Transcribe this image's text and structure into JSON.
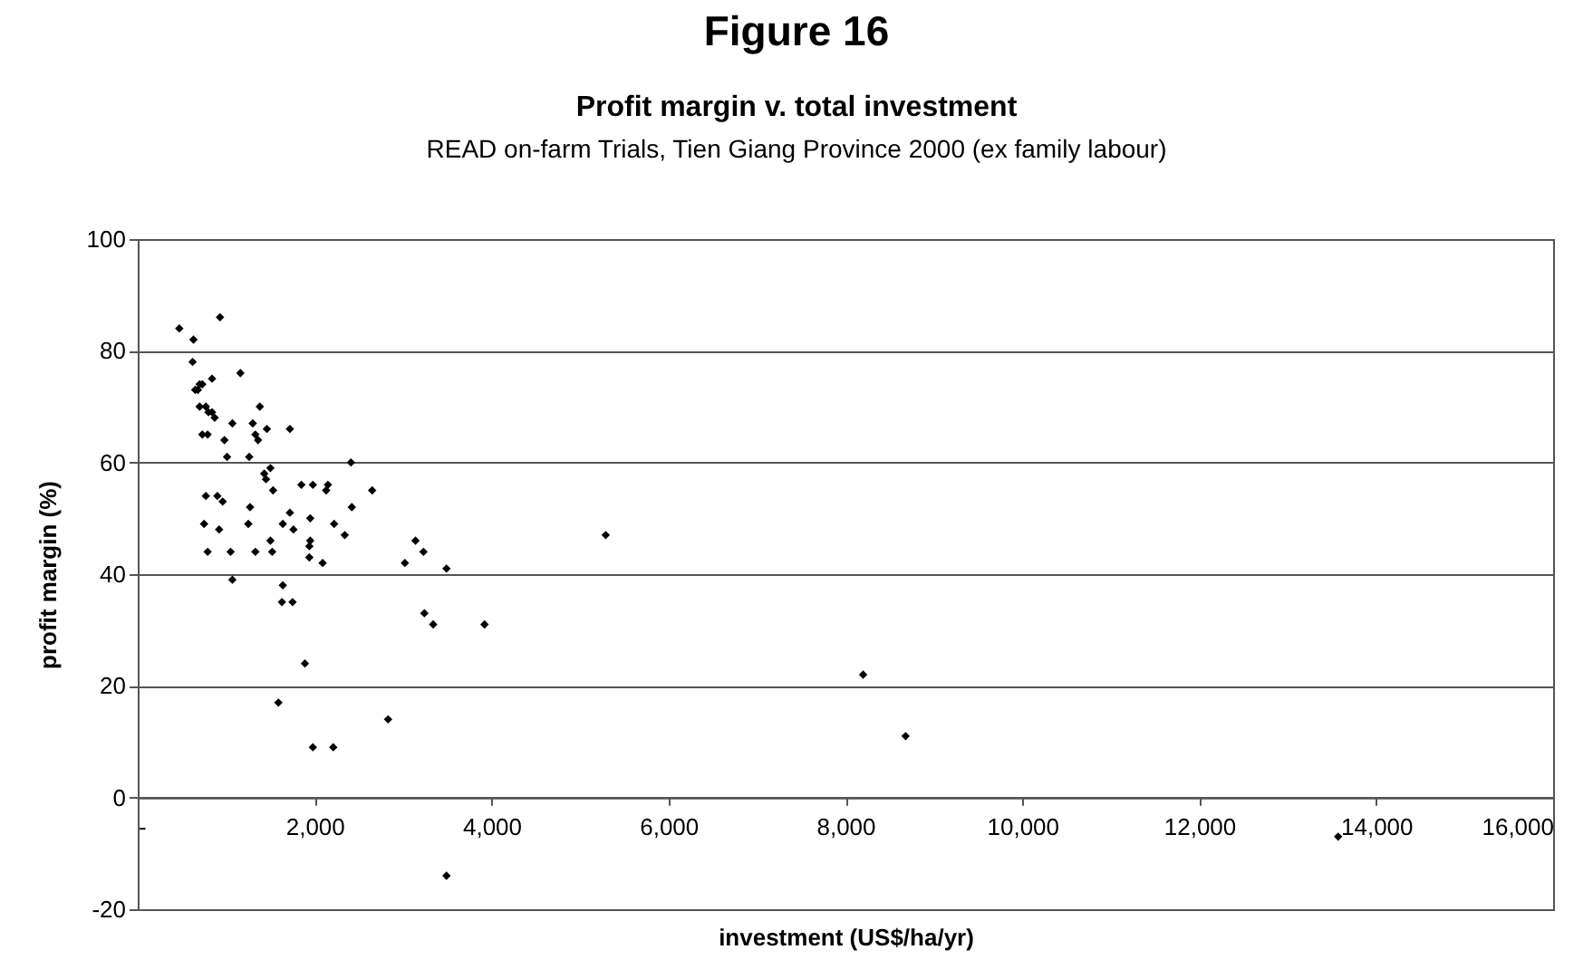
{
  "chart_data": {
    "type": "scatter",
    "title": "Figure 16",
    "subtitle": "Profit margin v. total investment",
    "annotations": [
      "READ on-farm Trials, Tien Giang Province 2000 (ex family labour)"
    ],
    "xlabel": "investment (US$/ha/yr)",
    "ylabel": "profit margin (%)",
    "series": [
      {
        "color": "#000000",
        "x": [
          470,
          630,
          930,
          620,
          840,
          1160,
          700,
          730,
          680,
          650,
          1380,
          700,
          770,
          800,
          840,
          870,
          1070,
          1300,
          1330,
          1360,
          1460,
          1720,
          730,
          790,
          980,
          1010,
          1260,
          1500,
          2410,
          1430,
          1450,
          1530,
          1850,
          1980,
          2150,
          2130,
          2650,
          770,
          900,
          960,
          1270,
          2420,
          1720,
          1760,
          1950,
          750,
          920,
          1250,
          1640,
          2220,
          2340,
          1500,
          1950,
          790,
          1050,
          1330,
          1520,
          1940,
          1940,
          2090,
          1070,
          1640,
          1630,
          1750,
          3020,
          3140,
          3230,
          3490,
          3240,
          3340,
          3920,
          1890,
          1590,
          1980,
          2210,
          2830,
          3490,
          5290,
          8200,
          8680,
          13570
        ],
        "values": [
          84,
          82,
          86,
          78,
          75,
          76,
          74,
          74,
          73,
          73,
          70,
          70,
          70,
          69,
          69,
          68,
          67,
          67,
          65,
          64,
          66,
          66,
          65,
          65,
          64,
          61,
          61,
          59,
          60,
          58,
          57,
          55,
          56,
          56,
          56,
          55,
          55,
          54,
          54,
          53,
          52,
          52,
          51,
          48,
          50,
          49,
          48,
          49,
          49,
          49,
          47,
          46,
          46,
          44,
          44,
          44,
          44,
          45,
          43,
          42,
          39,
          38,
          35,
          35,
          42,
          46,
          44,
          41,
          33,
          31,
          31,
          24,
          17,
          9,
          9,
          14,
          -14,
          47,
          22,
          11,
          -7
        ]
      }
    ],
    "xlim": [
      0,
      16000
    ],
    "ylim": [
      -20,
      100
    ],
    "xticks": [
      {
        "value": 0,
        "label": "-"
      },
      {
        "value": 2000,
        "label": "2,000"
      },
      {
        "value": 4000,
        "label": "4,000"
      },
      {
        "value": 6000,
        "label": "6,000"
      },
      {
        "value": 8000,
        "label": "8,000"
      },
      {
        "value": 10000,
        "label": "10,000"
      },
      {
        "value": 12000,
        "label": "12,000"
      },
      {
        "value": 14000,
        "label": "14,000"
      },
      {
        "value": 16000,
        "label": "16,000"
      }
    ],
    "yticks": [
      -20,
      0,
      20,
      40,
      60,
      80,
      100
    ],
    "grid": "y",
    "marker": "diamond"
  }
}
